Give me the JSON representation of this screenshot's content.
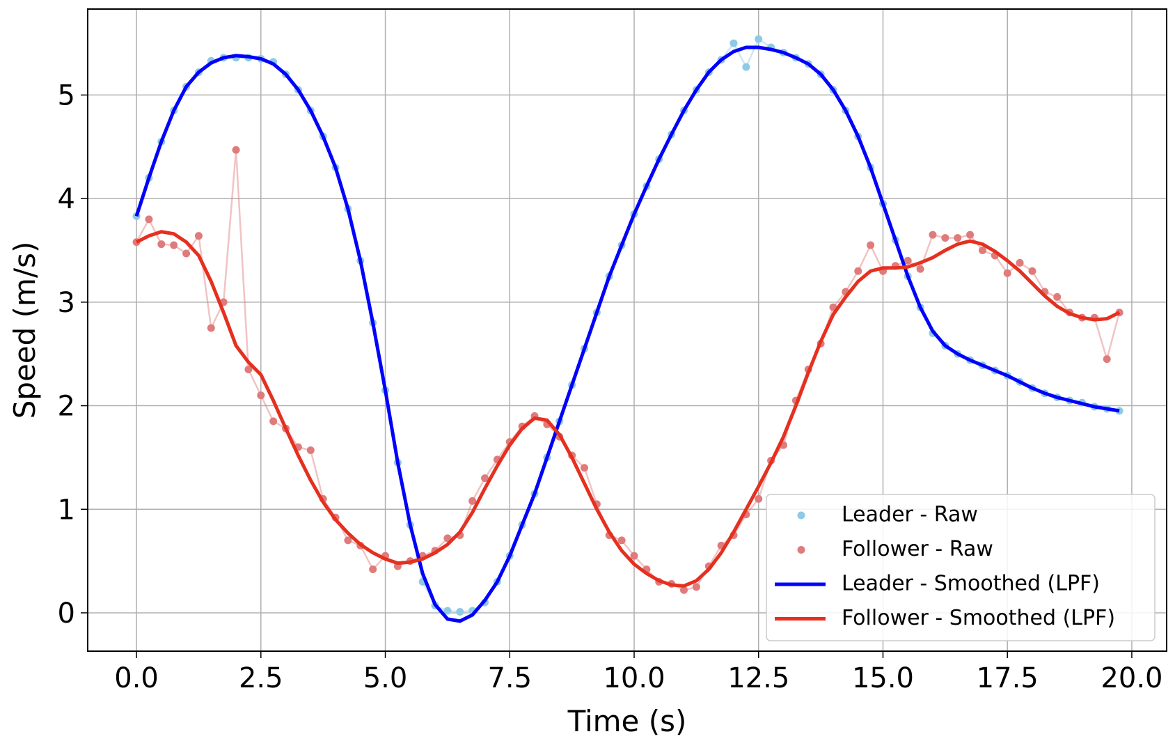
{
  "chart_data": {
    "type": "line",
    "x_label": "Time (s)",
    "y_label": "Speed (m/s)",
    "x": [
      0,
      0.25,
      0.5,
      0.75,
      1,
      1.25,
      1.5,
      1.75,
      2,
      2.25,
      2.5,
      2.75,
      3,
      3.25,
      3.5,
      3.75,
      4,
      4.25,
      4.5,
      4.75,
      5,
      5.25,
      5.5,
      5.75,
      6,
      6.25,
      6.5,
      6.75,
      7,
      7.25,
      7.5,
      7.75,
      8,
      8.25,
      8.5,
      8.75,
      9,
      9.25,
      9.5,
      9.75,
      10,
      10.25,
      10.5,
      10.75,
      11,
      11.25,
      11.5,
      11.75,
      12,
      12.25,
      12.5,
      12.75,
      13,
      13.25,
      13.5,
      13.75,
      14,
      14.25,
      14.5,
      14.75,
      15,
      15.25,
      15.5,
      15.75,
      16,
      16.25,
      16.5,
      16.75,
      17,
      17.25,
      17.5,
      17.75,
      18,
      18.25,
      18.5,
      18.75,
      19,
      19.25,
      19.5,
      19.75
    ],
    "series": [
      {
        "name": "Leader - Raw",
        "color": "#8ecae6",
        "marker": true,
        "values": [
          3.83,
          4.2,
          4.55,
          4.85,
          5.08,
          5.22,
          5.33,
          5.36,
          5.36,
          5.36,
          5.35,
          5.32,
          5.2,
          5.05,
          4.85,
          4.6,
          4.3,
          3.9,
          3.4,
          2.8,
          2.15,
          1.45,
          0.85,
          0.3,
          0.07,
          0.02,
          0.01,
          0.02,
          0.1,
          0.3,
          0.55,
          0.85,
          1.15,
          1.5,
          1.85,
          2.2,
          2.55,
          2.9,
          3.25,
          3.55,
          3.85,
          4.12,
          4.38,
          4.62,
          4.85,
          5.05,
          5.22,
          5.34,
          5.5,
          5.27,
          5.54,
          5.46,
          5.41,
          5.36,
          5.3,
          5.2,
          5.05,
          4.85,
          4.6,
          4.3,
          3.95,
          3.6,
          3.25,
          2.95,
          2.7,
          2.58,
          2.5,
          2.44,
          2.39,
          2.34,
          2.29,
          2.23,
          2.17,
          2.12,
          2.08,
          2.05,
          2.03,
          1.99,
          1.97,
          1.95
        ]
      },
      {
        "name": "Follower - Raw",
        "color": "#e07b7b",
        "marker": true,
        "values": [
          3.58,
          3.8,
          3.56,
          3.55,
          3.47,
          3.64,
          2.75,
          3.0,
          4.47,
          2.35,
          2.1,
          1.85,
          1.78,
          1.6,
          1.57,
          1.1,
          0.92,
          0.7,
          0.65,
          0.42,
          0.55,
          0.45,
          0.5,
          0.55,
          0.6,
          0.72,
          0.75,
          1.08,
          1.3,
          1.48,
          1.65,
          1.8,
          1.9,
          1.82,
          1.7,
          1.52,
          1.4,
          1.05,
          0.75,
          0.7,
          0.55,
          0.42,
          0.3,
          0.28,
          0.22,
          0.25,
          0.45,
          0.65,
          0.75,
          0.95,
          1.1,
          1.47,
          1.62,
          2.05,
          2.35,
          2.6,
          2.95,
          3.1,
          3.3,
          3.55,
          3.3,
          3.35,
          3.4,
          3.32,
          3.65,
          3.62,
          3.62,
          3.65,
          3.5,
          3.45,
          3.28,
          3.38,
          3.3,
          3.1,
          3.05,
          2.9,
          2.85,
          2.85,
          2.45,
          2.9
        ]
      },
      {
        "name": "Leader - Smoothed (LPF)",
        "color": "#0000ff",
        "marker": false,
        "values": [
          3.83,
          4.2,
          4.55,
          4.85,
          5.08,
          5.22,
          5.31,
          5.36,
          5.38,
          5.37,
          5.35,
          5.3,
          5.2,
          5.05,
          4.85,
          4.6,
          4.3,
          3.9,
          3.4,
          2.8,
          2.15,
          1.45,
          0.85,
          0.38,
          0.08,
          -0.06,
          -0.08,
          -0.02,
          0.12,
          0.3,
          0.55,
          0.85,
          1.15,
          1.5,
          1.85,
          2.2,
          2.55,
          2.9,
          3.25,
          3.55,
          3.85,
          4.12,
          4.38,
          4.62,
          4.85,
          5.05,
          5.22,
          5.34,
          5.42,
          5.46,
          5.46,
          5.44,
          5.41,
          5.36,
          5.3,
          5.2,
          5.05,
          4.85,
          4.6,
          4.3,
          3.95,
          3.6,
          3.25,
          2.95,
          2.72,
          2.58,
          2.5,
          2.44,
          2.39,
          2.34,
          2.29,
          2.23,
          2.17,
          2.12,
          2.08,
          2.05,
          2.02,
          1.99,
          1.97,
          1.95
        ]
      },
      {
        "name": "Follower - Smoothed (LPF)",
        "color": "#e53020",
        "marker": false,
        "values": [
          3.58,
          3.64,
          3.68,
          3.66,
          3.58,
          3.45,
          3.2,
          2.9,
          2.58,
          2.42,
          2.3,
          2.05,
          1.78,
          1.52,
          1.28,
          1.07,
          0.9,
          0.77,
          0.66,
          0.58,
          0.52,
          0.48,
          0.49,
          0.52,
          0.58,
          0.66,
          0.78,
          0.97,
          1.2,
          1.42,
          1.62,
          1.78,
          1.88,
          1.86,
          1.72,
          1.5,
          1.25,
          1.0,
          0.78,
          0.6,
          0.47,
          0.38,
          0.31,
          0.27,
          0.26,
          0.31,
          0.42,
          0.58,
          0.78,
          1.0,
          1.22,
          1.45,
          1.7,
          2.0,
          2.32,
          2.62,
          2.88,
          3.05,
          3.2,
          3.3,
          3.33,
          3.33,
          3.34,
          3.38,
          3.43,
          3.5,
          3.56,
          3.59,
          3.56,
          3.49,
          3.4,
          3.3,
          3.18,
          3.06,
          2.96,
          2.89,
          2.85,
          2.83,
          2.84,
          2.9
        ]
      }
    ],
    "xlim": [
      -0.98,
      20.7
    ],
    "ylim": [
      -0.37,
      5.83
    ],
    "xticks": [
      {
        "value": 0,
        "label": "0.0"
      },
      2.5,
      {
        "value": 5,
        "label": "5.0"
      },
      7.5,
      {
        "value": 10,
        "label": "10.0"
      },
      12.5,
      {
        "value": 15,
        "label": "15.0"
      },
      17.5,
      {
        "value": 20,
        "label": "20.0"
      }
    ],
    "yticks": [
      0,
      1,
      2,
      3,
      4,
      5
    ],
    "grid": true,
    "legend": "lower right"
  }
}
